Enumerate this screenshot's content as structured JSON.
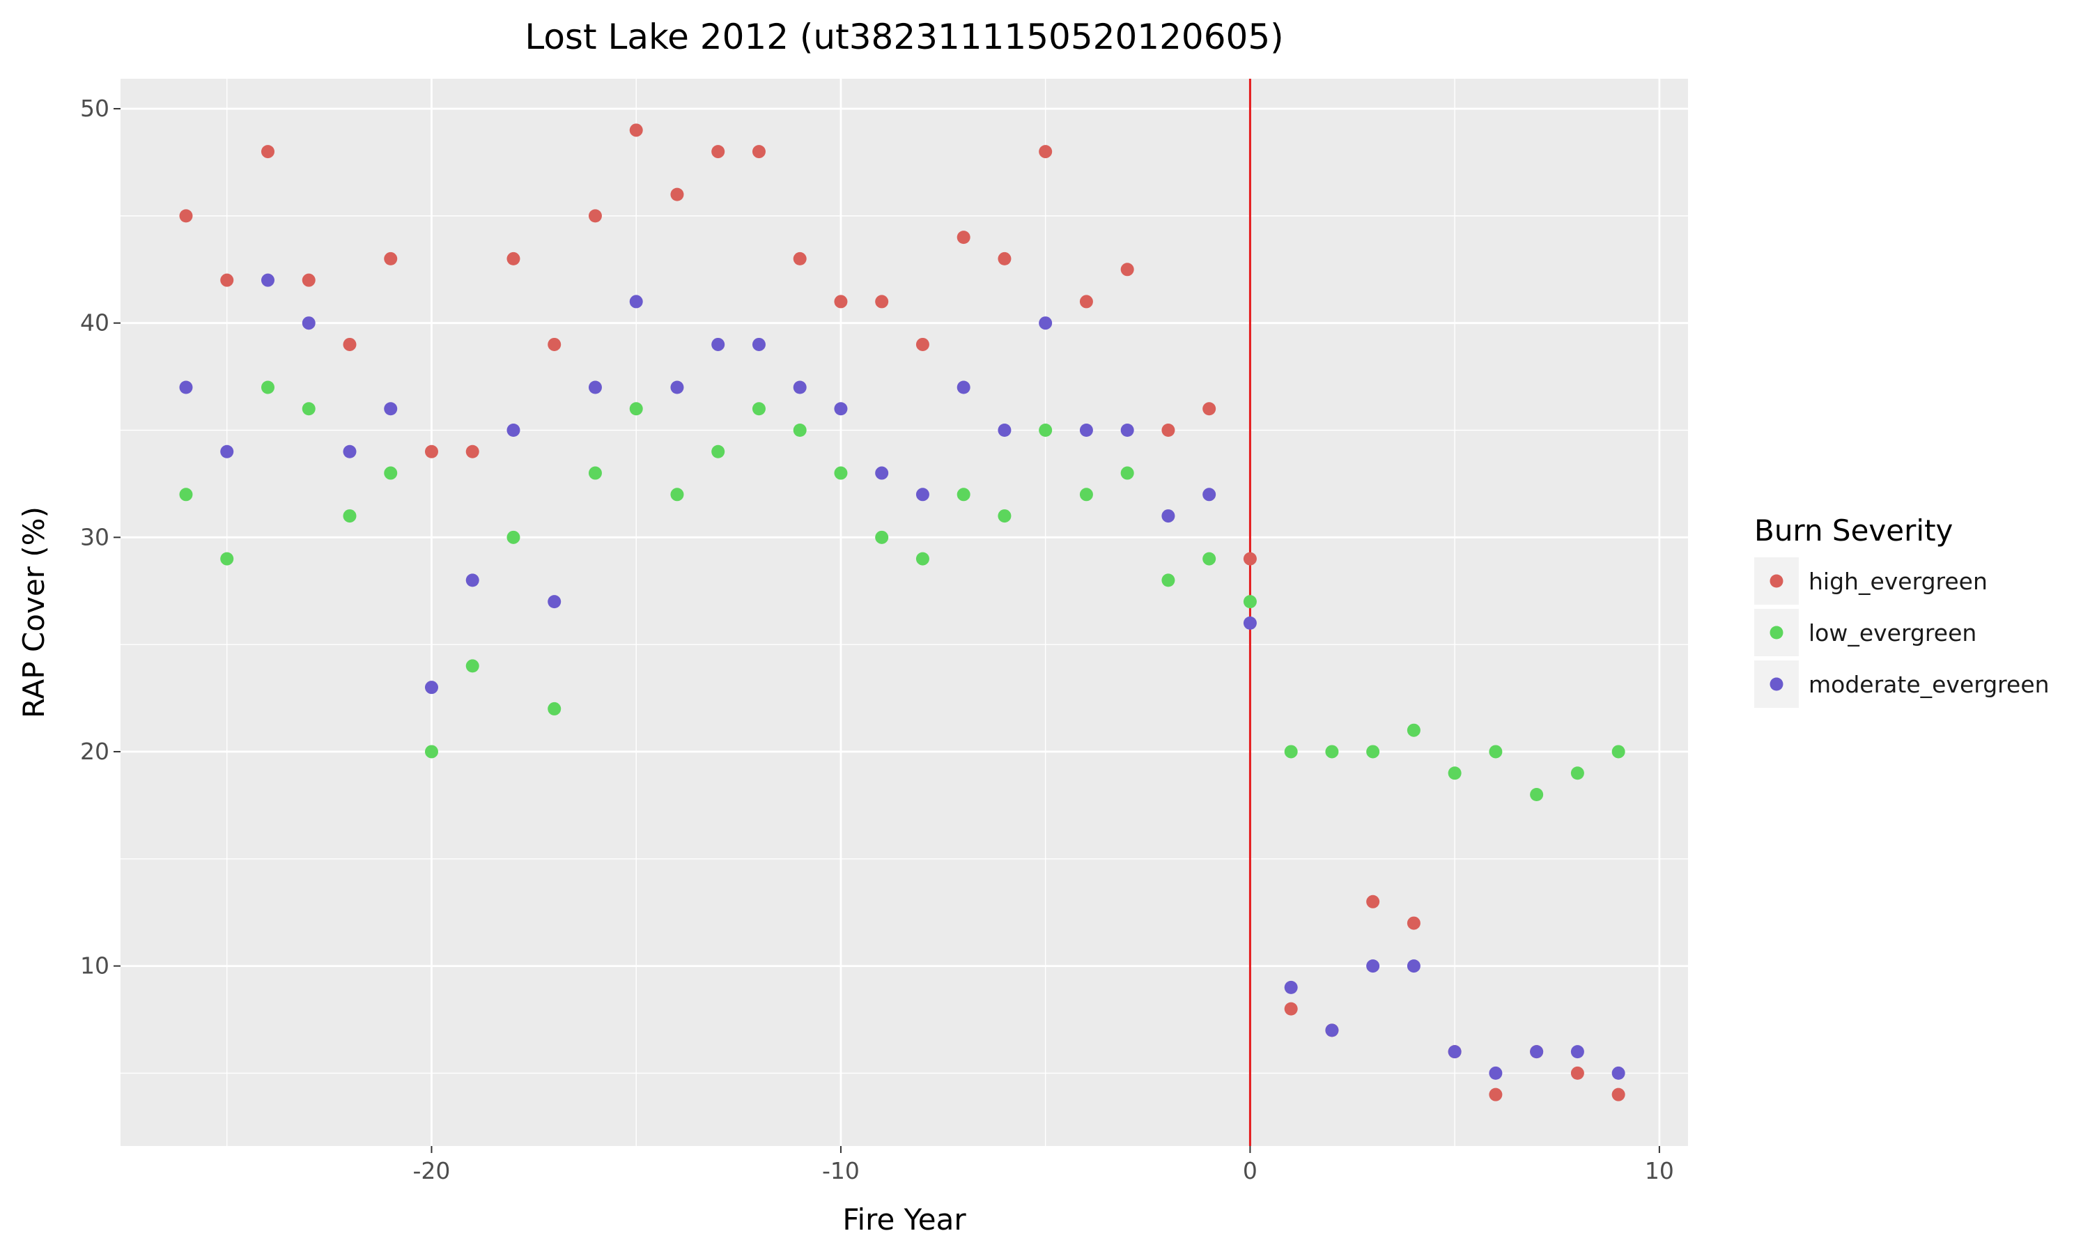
{
  "chart_data": {
    "type": "scatter",
    "title": "Lost Lake 2012 (ut3823111150520120605)",
    "xlabel": "Fire Year",
    "ylabel": "RAP Cover (%)",
    "xlim": [
      -27.6,
      10.7
    ],
    "ylim": [
      1.6,
      51.4
    ],
    "x_ticks": [
      -20,
      -10,
      0,
      10
    ],
    "x_tick_labels": [
      "-20",
      "-10",
      "0",
      "10"
    ],
    "y_ticks": [
      10,
      20,
      30,
      40,
      50
    ],
    "y_tick_labels": [
      "10",
      "20",
      "30",
      "40",
      "50"
    ],
    "grid": true,
    "background": "#ebebeb",
    "reference_line": {
      "x": 0,
      "color": "#e31a1c"
    },
    "legend": {
      "title": "Burn Severity",
      "position": "right"
    },
    "series": [
      {
        "name": "high_evergreen",
        "color": "#d95f59",
        "points": [
          [
            -26,
            45
          ],
          [
            -25,
            42
          ],
          [
            -24,
            48
          ],
          [
            -23,
            42
          ],
          [
            -22,
            39
          ],
          [
            -21,
            43
          ],
          [
            -20,
            34
          ],
          [
            -19,
            34
          ],
          [
            -18,
            43
          ],
          [
            -17,
            39
          ],
          [
            -16,
            45
          ],
          [
            -15,
            49
          ],
          [
            -14,
            46
          ],
          [
            -13,
            48
          ],
          [
            -12,
            48
          ],
          [
            -11,
            43
          ],
          [
            -10,
            41
          ],
          [
            -9,
            41
          ],
          [
            -8,
            39
          ],
          [
            -7,
            44
          ],
          [
            -6,
            43
          ],
          [
            -5,
            48
          ],
          [
            -4,
            41
          ],
          [
            -3,
            42.5
          ],
          [
            -2,
            35
          ],
          [
            -1,
            36
          ],
          [
            0,
            29
          ],
          [
            1,
            8
          ],
          [
            2,
            7
          ],
          [
            3,
            13
          ],
          [
            4,
            12
          ],
          [
            5,
            6
          ],
          [
            6,
            4
          ],
          [
            7,
            6
          ],
          [
            8,
            5
          ],
          [
            9,
            4
          ]
        ]
      },
      {
        "name": "low_evergreen",
        "color": "#5cd65c",
        "points": [
          [
            -26,
            32
          ],
          [
            -25,
            29
          ],
          [
            -24,
            37
          ],
          [
            -23,
            36
          ],
          [
            -22,
            31
          ],
          [
            -21,
            33
          ],
          [
            -20,
            20
          ],
          [
            -19,
            24
          ],
          [
            -18,
            30
          ],
          [
            -17,
            22
          ],
          [
            -16,
            33
          ],
          [
            -15,
            36
          ],
          [
            -14,
            32
          ],
          [
            -13,
            34
          ],
          [
            -12,
            36
          ],
          [
            -11,
            35
          ],
          [
            -10,
            33
          ],
          [
            -9,
            30
          ],
          [
            -8,
            29
          ],
          [
            -7,
            32
          ],
          [
            -6,
            31
          ],
          [
            -5,
            35
          ],
          [
            -4,
            32
          ],
          [
            -3,
            33
          ],
          [
            -2,
            28
          ],
          [
            -1,
            29
          ],
          [
            0,
            27
          ],
          [
            1,
            20
          ],
          [
            2,
            20
          ],
          [
            3,
            20
          ],
          [
            4,
            21
          ],
          [
            5,
            19
          ],
          [
            6,
            20
          ],
          [
            7,
            18
          ],
          [
            8,
            19
          ],
          [
            9,
            20
          ]
        ]
      },
      {
        "name": "moderate_evergreen",
        "color": "#6a5acd",
        "points": [
          [
            -26,
            37
          ],
          [
            -25,
            34
          ],
          [
            -24,
            42
          ],
          [
            -23,
            40
          ],
          [
            -22,
            34
          ],
          [
            -21,
            36
          ],
          [
            -20,
            23
          ],
          [
            -19,
            28
          ],
          [
            -18,
            35
          ],
          [
            -17,
            27
          ],
          [
            -16,
            37
          ],
          [
            -15,
            41
          ],
          [
            -14,
            37
          ],
          [
            -13,
            39
          ],
          [
            -12,
            39
          ],
          [
            -11,
            37
          ],
          [
            -10,
            36
          ],
          [
            -9,
            33
          ],
          [
            -8,
            32
          ],
          [
            -7,
            37
          ],
          [
            -6,
            35
          ],
          [
            -5,
            40
          ],
          [
            -4,
            35
          ],
          [
            -3,
            35
          ],
          [
            -2,
            31
          ],
          [
            -1,
            32
          ],
          [
            0,
            26
          ],
          [
            1,
            9
          ],
          [
            2,
            7
          ],
          [
            3,
            10
          ],
          [
            4,
            10
          ],
          [
            5,
            6
          ],
          [
            6,
            5
          ],
          [
            7,
            6
          ],
          [
            8,
            6
          ],
          [
            9,
            5
          ]
        ]
      }
    ]
  }
}
